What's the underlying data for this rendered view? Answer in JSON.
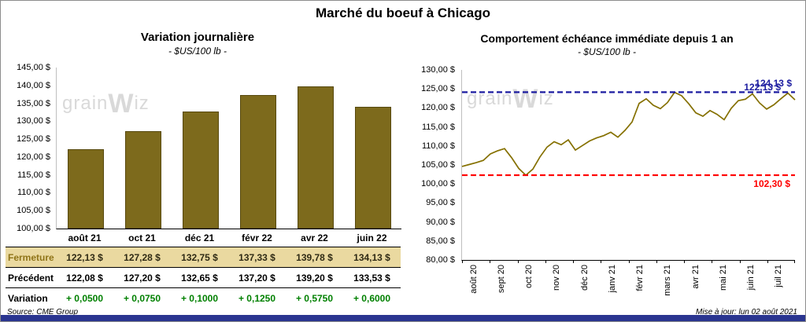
{
  "page": {
    "title": "Marché du boeuf à Chicago",
    "source": "Source: CME Group",
    "updated": "Mise à jour: lun 02 août 2021",
    "watermark": {
      "pre": "grain",
      "w": "W",
      "post": "iz"
    }
  },
  "left": {
    "title": "Variation journalière",
    "subtitle": "- $US/100 lb -",
    "table": {
      "rows": [
        {
          "label": "Fermeture",
          "values": [
            "122,13  $",
            "127,28  $",
            "132,75  $",
            "137,33  $",
            "139,78  $",
            "134,13  $"
          ]
        },
        {
          "label": "Précédent",
          "values": [
            "122,08  $",
            "127,20  $",
            "132,65  $",
            "137,20  $",
            "139,20  $",
            "133,53  $"
          ]
        },
        {
          "label": "Variation",
          "values": [
            "+ 0,0500",
            "+ 0,0750",
            "+ 0,1000",
            "+ 0,1250",
            "+ 0,5750",
            "+ 0,6000"
          ]
        }
      ]
    }
  },
  "right": {
    "title": "Comportement échéance immédiate depuis 1 an",
    "subtitle": "- $US/100 lb -"
  },
  "colors": {
    "bar_color": "#7d6a1c",
    "line_color": "#857000",
    "high_line_color": "#1c1ca0",
    "low_line_color": "#ff0000",
    "highlight_row_bg": "#ead9a0",
    "variation_green": "#008000",
    "bottom_strip": "#2a3590",
    "watermark": "#d9d9d9"
  },
  "chart_data": [
    {
      "type": "bar",
      "title": "Variation journalière",
      "subtitle": "- $US/100 lb -",
      "unit": "$US/100 lb",
      "categories": [
        "août 21",
        "oct 21",
        "déc 21",
        "févr 22",
        "avr 22",
        "juin 22"
      ],
      "values": [
        122.13,
        127.28,
        132.75,
        137.33,
        139.78,
        134.13
      ],
      "ylim": [
        100,
        145
      ],
      "ytick_step": 5,
      "y_labels": [
        "145,00 $",
        "140,00 $",
        "135,00 $",
        "130,00 $",
        "125,00 $",
        "120,00 $",
        "115,00 $",
        "110,00 $",
        "105,00 $",
        "100,00 $"
      ],
      "bar_color": "#7d6a1c",
      "grid": false,
      "legend": false
    },
    {
      "type": "line",
      "title": "Comportement échéance immédiate depuis 1 an",
      "subtitle": "- $US/100 lb -",
      "unit": "$US/100 lb",
      "x_labels": [
        "août 20",
        "sept 20",
        "oct 20",
        "nov 20",
        "déc 20",
        "janv 21",
        "févr 21",
        "mars 21",
        "avr 21",
        "mai 21",
        "juin 21",
        "juil 21"
      ],
      "values": [
        104.6,
        105.1,
        105.6,
        106.2,
        107.9,
        108.7,
        109.3,
        106.9,
        104.1,
        102.3,
        103.9,
        107.1,
        109.7,
        111.1,
        110.3,
        111.6,
        108.9,
        110.1,
        111.3,
        112.1,
        112.7,
        113.6,
        112.3,
        114.1,
        116.3,
        121.2,
        122.4,
        120.7,
        119.8,
        121.4,
        124.1,
        123.2,
        121.1,
        118.7,
        117.8,
        119.3,
        118.3,
        116.9,
        119.9,
        121.9,
        122.3,
        123.7,
        121.3,
        119.7,
        120.8,
        122.4,
        123.9,
        122.13
      ],
      "ylim": [
        80,
        130
      ],
      "ytick_step": 5,
      "y_labels": [
        "130,00 $",
        "125,00 $",
        "120,00 $",
        "115,00 $",
        "110,00 $",
        "105,00 $",
        "100,00 $",
        "95,00 $",
        "90,00 $",
        "85,00 $",
        "80,00 $"
      ],
      "line_color": "#857000",
      "high_line": {
        "value": 124.13,
        "label": "124,13 $",
        "color": "#1c1ca0"
      },
      "last_label": {
        "value": 122.13,
        "label": "122,13 $",
        "color": "#1c1ca0"
      },
      "low_line": {
        "value": 102.3,
        "label": "102,30 $",
        "color": "#ff0000"
      },
      "grid": false,
      "legend": false
    }
  ]
}
